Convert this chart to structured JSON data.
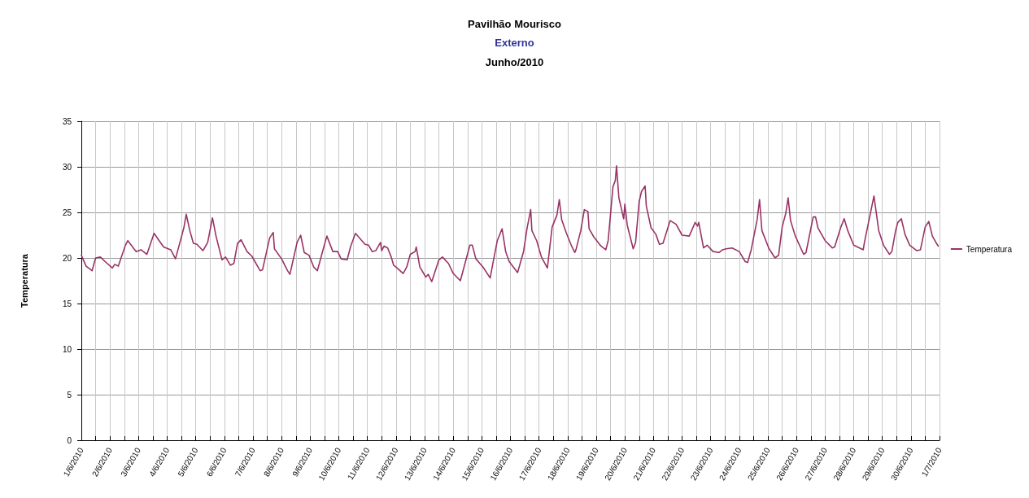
{
  "chart_data": {
    "type": "line",
    "title": "Pavilhão Mourisco",
    "subtitle": "Externo",
    "annotations": [
      "Junho/2010"
    ],
    "ylabel": "Temperatura",
    "series": [
      {
        "name": "Temperatura",
        "color": "#993366",
        "x": [
          "2010-06-01T00:00",
          "2010-06-01T04:00",
          "2010-06-01T09:00",
          "2010-06-01T12:00",
          "2010-06-01T16:00",
          "2010-06-01T20:00",
          "2010-06-02T02:00",
          "2010-06-02T04:00",
          "2010-06-02T07:00",
          "2010-06-02T13:00",
          "2010-06-02T15:00",
          "2010-06-02T22:00",
          "2010-06-03T02:00",
          "2010-06-03T07:00",
          "2010-06-03T13:00",
          "2010-06-03T21:00",
          "2010-06-04T03:00",
          "2010-06-04T07:00",
          "2010-06-04T14:00",
          "2010-06-04T16:00",
          "2010-06-04T19:00",
          "2010-06-04T22:00",
          "2010-06-05T01:00",
          "2010-06-05T06:00",
          "2010-06-05T10:00",
          "2010-06-05T14:00",
          "2010-06-05T17:00",
          "2010-06-05T22:00",
          "2010-06-06T01:00",
          "2010-06-06T05:00",
          "2010-06-06T08:00",
          "2010-06-06T11:00",
          "2010-06-06T14:00",
          "2010-06-06T19:00",
          "2010-06-06T23:00",
          "2010-06-07T06:00",
          "2010-06-07T08:00",
          "2010-06-07T14:00",
          "2010-06-07T17:00",
          "2010-06-07T18:00",
          "2010-06-08T00:00",
          "2010-06-08T05:00",
          "2010-06-08T07:00",
          "2010-06-08T13:00",
          "2010-06-08T16:00",
          "2010-06-08T19:00",
          "2010-06-08T23:00",
          "2010-06-09T03:00",
          "2010-06-09T06:00",
          "2010-06-09T11:00",
          "2010-06-09T14:00",
          "2010-06-09T19:00",
          "2010-06-09T23:00",
          "2010-06-10T02:00",
          "2010-06-10T07:00",
          "2010-06-10T10:00",
          "2010-06-10T14:00",
          "2010-06-10T22:00",
          "2010-06-11T01:00",
          "2010-06-11T04:00",
          "2010-06-11T07:00",
          "2010-06-11T11:00",
          "2010-06-11T12:00",
          "2010-06-11T14:00",
          "2010-06-11T17:00",
          "2010-06-11T20:00",
          "2010-06-11T22:00",
          "2010-06-12T01:00",
          "2010-06-12T06:00",
          "2010-06-12T09:00",
          "2010-06-12T12:00",
          "2010-06-12T16:00",
          "2010-06-12T17:00",
          "2010-06-12T20:00",
          "2010-06-13T01:00",
          "2010-06-13T03:00",
          "2010-06-13T06:00",
          "2010-06-13T12:00",
          "2010-06-13T15:00",
          "2010-06-13T20:00",
          "2010-06-14T00:00",
          "2010-06-14T06:00",
          "2010-06-14T14:00",
          "2010-06-14T16:00",
          "2010-06-14T19:00",
          "2010-06-15T01:00",
          "2010-06-15T07:00",
          "2010-06-15T10:00",
          "2010-06-15T13:00",
          "2010-06-15T17:00",
          "2010-06-15T20:00",
          "2010-06-15T23:00",
          "2010-06-16T06:00",
          "2010-06-16T11:00",
          "2010-06-16T14:00",
          "2010-06-16T17:00",
          "2010-06-16T18:00",
          "2010-06-16T22:00",
          "2010-06-17T02:00",
          "2010-06-17T07:00",
          "2010-06-17T11:00",
          "2010-06-17T15:00",
          "2010-06-17T17:00",
          "2010-06-17T19:00",
          "2010-06-17T23:00",
          "2010-06-18T03:00",
          "2010-06-18T06:00",
          "2010-06-18T07:00",
          "2010-06-18T11:00",
          "2010-06-18T14:00",
          "2010-06-18T17:00",
          "2010-06-18T18:00",
          "2010-06-18T22:00",
          "2010-06-19T04:00",
          "2010-06-19T08:00",
          "2010-06-19T10:00",
          "2010-06-19T14:00",
          "2010-06-19T16:00",
          "2010-06-19T17:00",
          "2010-06-19T19:00",
          "2010-06-19T23:00",
          "2010-06-20T00:00",
          "2010-06-20T02:00",
          "2010-06-20T07:00",
          "2010-06-20T09:00",
          "2010-06-20T12:00",
          "2010-06-20T14:00",
          "2010-06-20T17:00",
          "2010-06-20T18:00",
          "2010-06-20T22:00",
          "2010-06-21T02:00",
          "2010-06-21T05:00",
          "2010-06-21T08:00",
          "2010-06-21T14:00",
          "2010-06-21T19:00",
          "2010-06-22T00:00",
          "2010-06-22T06:00",
          "2010-06-22T11:00",
          "2010-06-22T13:00",
          "2010-06-22T14:00",
          "2010-06-22T18:00",
          "2010-06-22T21:00",
          "2010-06-23T02:00",
          "2010-06-23T07:00",
          "2010-06-23T10:00",
          "2010-06-23T13:00",
          "2010-06-23T18:00",
          "2010-06-24T00:00",
          "2010-06-24T05:00",
          "2010-06-24T07:00",
          "2010-06-24T10:00",
          "2010-06-24T15:00",
          "2010-06-24T17:00",
          "2010-06-24T19:00",
          "2010-06-25T01:00",
          "2010-06-25T06:00",
          "2010-06-25T09:00",
          "2010-06-25T12:00",
          "2010-06-25T15:00",
          "2010-06-25T17:00",
          "2010-06-25T19:00",
          "2010-06-25T23:00",
          "2010-06-26T06:00",
          "2010-06-26T08:00",
          "2010-06-26T14:00",
          "2010-06-26T16:00",
          "2010-06-26T18:00",
          "2010-06-27T00:00",
          "2010-06-27T06:00",
          "2010-06-27T08:00",
          "2010-06-27T13:00",
          "2010-06-27T16:00",
          "2010-06-27T19:00",
          "2010-06-28T00:00",
          "2010-06-28T08:00",
          "2010-06-28T09:00",
          "2010-06-28T14:00",
          "2010-06-28T17:00",
          "2010-06-28T21:00",
          "2010-06-29T01:00",
          "2010-06-29T06:00",
          "2010-06-29T08:00",
          "2010-06-29T11:00",
          "2010-06-29T13:00",
          "2010-06-29T16:00",
          "2010-06-29T19:00",
          "2010-06-29T23:00",
          "2010-06-30T05:00",
          "2010-06-30T08:00",
          "2010-06-30T12:00",
          "2010-06-30T15:00",
          "2010-06-30T18:00",
          "2010-06-30T21:00",
          "2010-06-30T23:00"
        ],
        "values": [
          20.3,
          19.1,
          18.6,
          20.0,
          20.1,
          19.6,
          18.9,
          19.3,
          19.1,
          21.4,
          21.9,
          20.7,
          20.9,
          20.4,
          22.7,
          21.2,
          20.9,
          19.9,
          23.3,
          24.8,
          23.0,
          21.6,
          21.5,
          20.8,
          21.7,
          24.4,
          22.4,
          19.8,
          20.1,
          19.2,
          19.4,
          21.6,
          22.0,
          20.7,
          20.2,
          18.6,
          18.7,
          22.2,
          22.8,
          21.0,
          19.9,
          18.6,
          18.2,
          21.7,
          22.5,
          20.6,
          20.3,
          19.0,
          18.6,
          21.0,
          22.4,
          20.7,
          20.7,
          19.9,
          19.8,
          21.3,
          22.7,
          21.5,
          21.4,
          20.7,
          20.8,
          21.7,
          20.8,
          21.3,
          21.1,
          20.1,
          19.2,
          18.9,
          18.3,
          19.0,
          20.4,
          20.7,
          21.2,
          19.0,
          17.9,
          18.2,
          17.4,
          19.8,
          20.1,
          19.4,
          18.3,
          17.5,
          21.4,
          21.4,
          19.9,
          19.0,
          17.8,
          19.9,
          21.9,
          23.2,
          20.7,
          19.6,
          18.4,
          20.7,
          23.3,
          25.3,
          23.0,
          21.9,
          20.1,
          18.9,
          23.4,
          24.7,
          26.4,
          24.2,
          22.7,
          21.4,
          20.6,
          20.9,
          23.0,
          25.3,
          25.1,
          23.2,
          22.3,
          21.3,
          20.9,
          21.9,
          27.8,
          28.5,
          30.1,
          26.6,
          24.3,
          25.9,
          23.6,
          21.0,
          21.7,
          26.2,
          27.3,
          27.9,
          25.7,
          23.3,
          22.6,
          21.5,
          21.6,
          24.1,
          23.7,
          22.5,
          22.4,
          23.9,
          23.5,
          23.9,
          21.1,
          21.4,
          20.7,
          20.6,
          20.9,
          21.0,
          21.1,
          20.7,
          19.6,
          19.5,
          20.9,
          24.2,
          26.4,
          23.0,
          21.0,
          20.0,
          20.3,
          23.4,
          24.9,
          26.6,
          24.1,
          22.4,
          20.4,
          20.6,
          24.5,
          24.5,
          23.3,
          21.9,
          21.1,
          21.2,
          23.3,
          24.3,
          23.0,
          21.4,
          20.9,
          21.7,
          24.9,
          26.8,
          23.0,
          21.4,
          20.4,
          20.7,
          22.9,
          23.9,
          24.3,
          22.6,
          21.4,
          20.8,
          20.9,
          23.4,
          24.0,
          22.4,
          21.7,
          21.3
        ]
      }
    ],
    "xlim": [
      "2010-06-01",
      "2010-07-01"
    ],
    "xticks": [
      {
        "value": "2010-06-01",
        "label": "1/6/2010"
      },
      {
        "value": "2010-06-01T12:00",
        "label": null
      },
      {
        "value": "2010-06-02",
        "label": "2/6/2010"
      },
      {
        "value": "2010-06-02T12:00",
        "label": null
      },
      {
        "value": "2010-06-03",
        "label": "3/6/2010"
      },
      {
        "value": "2010-06-03T12:00",
        "label": null
      },
      {
        "value": "2010-06-04",
        "label": "4/6/2010"
      },
      {
        "value": "2010-06-04T12:00",
        "label": null
      },
      {
        "value": "2010-06-05",
        "label": "5/6/2010"
      },
      {
        "value": "2010-06-05T12:00",
        "label": null
      },
      {
        "value": "2010-06-06",
        "label": "6/6/2010"
      },
      {
        "value": "2010-06-06T12:00",
        "label": null
      },
      {
        "value": "2010-06-07",
        "label": "7/6/2010"
      },
      {
        "value": "2010-06-07T12:00",
        "label": null
      },
      {
        "value": "2010-06-08",
        "label": "8/6/2010"
      },
      {
        "value": "2010-06-08T12:00",
        "label": null
      },
      {
        "value": "2010-06-09",
        "label": "9/6/2010"
      },
      {
        "value": "2010-06-09T12:00",
        "label": null
      },
      {
        "value": "2010-06-10",
        "label": "10/6/2010"
      },
      {
        "value": "2010-06-10T12:00",
        "label": null
      },
      {
        "value": "2010-06-11",
        "label": "11/6/2010"
      },
      {
        "value": "2010-06-11T12:00",
        "label": null
      },
      {
        "value": "2010-06-12",
        "label": "12/6/2010"
      },
      {
        "value": "2010-06-12T12:00",
        "label": null
      },
      {
        "value": "2010-06-13",
        "label": "13/6/2010"
      },
      {
        "value": "2010-06-13T12:00",
        "label": null
      },
      {
        "value": "2010-06-14",
        "label": "14/6/2010"
      },
      {
        "value": "2010-06-14T12:00",
        "label": null
      },
      {
        "value": "2010-06-15",
        "label": "15/6/2010"
      },
      {
        "value": "2010-06-15T12:00",
        "label": null
      },
      {
        "value": "2010-06-16",
        "label": "16/6/2010"
      },
      {
        "value": "2010-06-16T12:00",
        "label": null
      },
      {
        "value": "2010-06-17",
        "label": "17/6/2010"
      },
      {
        "value": "2010-06-17T12:00",
        "label": null
      },
      {
        "value": "2010-06-18",
        "label": "18/6/2010"
      },
      {
        "value": "2010-06-18T12:00",
        "label": null
      },
      {
        "value": "2010-06-19",
        "label": "19/6/2010"
      },
      {
        "value": "2010-06-19T12:00",
        "label": null
      },
      {
        "value": "2010-06-20",
        "label": "20/6/2010"
      },
      {
        "value": "2010-06-20T12:00",
        "label": null
      },
      {
        "value": "2010-06-21",
        "label": "21/6/2010"
      },
      {
        "value": "2010-06-21T12:00",
        "label": null
      },
      {
        "value": "2010-06-22",
        "label": "22/6/2010"
      },
      {
        "value": "2010-06-22T12:00",
        "label": null
      },
      {
        "value": "2010-06-23",
        "label": "23/6/2010"
      },
      {
        "value": "2010-06-23T12:00",
        "label": null
      },
      {
        "value": "2010-06-24",
        "label": "24/6/2010"
      },
      {
        "value": "2010-06-24T12:00",
        "label": null
      },
      {
        "value": "2010-06-25",
        "label": "25/6/2010"
      },
      {
        "value": "2010-06-25T12:00",
        "label": null
      },
      {
        "value": "2010-06-26",
        "label": "26/6/2010"
      },
      {
        "value": "2010-06-26T12:00",
        "label": null
      },
      {
        "value": "2010-06-27",
        "label": "27/6/2010"
      },
      {
        "value": "2010-06-27T12:00",
        "label": null
      },
      {
        "value": "2010-06-28",
        "label": "28/6/2010"
      },
      {
        "value": "2010-06-28T12:00",
        "label": null
      },
      {
        "value": "2010-06-29",
        "label": "29/6/2010"
      },
      {
        "value": "2010-06-29T12:00",
        "label": null
      },
      {
        "value": "2010-06-30",
        "label": "30/6/2010"
      },
      {
        "value": "2010-06-30T12:00",
        "label": null
      },
      {
        "value": "2010-07-01",
        "label": "1/7/2010"
      }
    ],
    "ylim": [
      0,
      35
    ],
    "yticks": [
      0,
      5,
      10,
      15,
      20,
      25,
      30,
      35
    ],
    "grid": true,
    "legend": "right",
    "marker": "none",
    "line_style": "solid"
  }
}
